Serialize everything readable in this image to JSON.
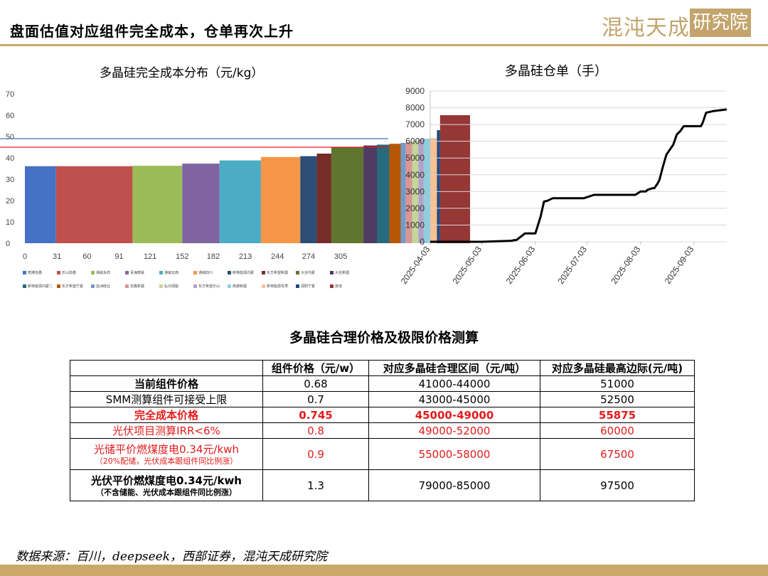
{
  "header": {
    "title": "盘面估值对应组件完全成本，仓单再次上升",
    "logo": "混沌天成研究院",
    "logo_main": "混沌天成",
    "logo_boxed": "研究院"
  },
  "source": "数据来源：百川，deepseek，西部证券，混沌天成研究院",
  "colors": {
    "accent": "#c9a86a",
    "red": "#e31b1b",
    "logo": "#c3a46c"
  },
  "chart_data": [
    {
      "type": "bar",
      "title": "多晶硅完全成本分布（元/kg）",
      "xlabel": "",
      "ylabel": "",
      "xlim": [
        0,
        340
      ],
      "ylim": [
        0,
        70
      ],
      "yticks": [
        0,
        10,
        20,
        30,
        40,
        50,
        60,
        70
      ],
      "xticks": [
        0,
        31,
        60,
        91,
        121,
        152,
        182,
        213,
        244,
        274,
        305
      ],
      "bars": [
        {
          "name": "丽港协鑫",
          "x0": 0,
          "x1": 30,
          "value": 36.1,
          "color": "#4472c4"
        },
        {
          "name": "乐山协鑫",
          "x0": 30,
          "x1": 104,
          "value": 36.1,
          "color": "#c0504d"
        },
        {
          "name": "通威永祥",
          "x0": 104,
          "x1": 152,
          "value": 36.3,
          "color": "#9bbb59"
        },
        {
          "name": "青海丽豪",
          "x0": 152,
          "x1": 188,
          "value": 37.3,
          "color": "#8064a2"
        },
        {
          "name": "通威云南",
          "x0": 188,
          "x1": 228,
          "value": 38.8,
          "color": "#4bacc6"
        },
        {
          "name": "通威四川",
          "x0": 228,
          "x1": 266,
          "value": 40.4,
          "color": "#f79646"
        },
        {
          "name": "新特能源内蒙",
          "x0": 266,
          "x1": 282,
          "value": 40.8,
          "color": "#2c4d75"
        },
        {
          "name": "东方希望新疆",
          "x0": 282,
          "x1": 296,
          "value": 42.0,
          "color": "#772c2a"
        },
        {
          "name": "大全内蒙",
          "x0": 296,
          "x1": 327,
          "value": 45.0,
          "color": "#5f7530"
        },
        {
          "name": "大全新疆",
          "x0": 327,
          "x1": 340,
          "value": 45.8,
          "color": "#4d3b62"
        },
        {
          "name": "新特能源内蒙二",
          "x0": 340,
          "x1": 352,
          "value": 46.2,
          "color": "#276a7c"
        },
        {
          "name": "东方希望宁夏",
          "x0": 352,
          "x1": 363,
          "value": 46.6,
          "color": "#b65708"
        },
        {
          "name": "亚洲硅业",
          "x0": 363,
          "x1": 368,
          "value": 47.0,
          "color": "#729aca"
        },
        {
          "name": "协鑫新疆",
          "x0": 368,
          "x1": 374,
          "value": 47.4,
          "color": "#d99694"
        },
        {
          "name": "弘元绿能",
          "x0": 374,
          "x1": 380,
          "value": 48.0,
          "color": "#c3d69b"
        },
        {
          "name": "东方希望乐山",
          "x0": 380,
          "x1": 385,
          "value": 48.8,
          "color": "#b3a2c7"
        },
        {
          "name": "南玻新疆",
          "x0": 385,
          "x1": 392,
          "value": 49.0,
          "color": "#93cddd"
        },
        {
          "name": "新特能源甘肃",
          "x0": 392,
          "x1": 398,
          "value": 49.2,
          "color": "#fac090"
        },
        {
          "name": "润阳宁夏",
          "x0": 398,
          "x1": 401,
          "value": 53.0,
          "color": "#1f497d"
        },
        {
          "name": "其他",
          "x0": 401,
          "x1": 430,
          "value": 60.0,
          "color": "#953735"
        }
      ],
      "hlines": [
        {
          "value": 49.0,
          "color": "#4472c4"
        },
        {
          "value": 45.0,
          "color": "#e31b1b"
        }
      ],
      "legend_position": "bottom"
    },
    {
      "type": "line",
      "title": "多晶硅仓单（手）",
      "xlabel": "",
      "ylabel": "",
      "xlim": [
        "2025-04-03",
        "2025-09-22"
      ],
      "ylim": [
        0,
        9000
      ],
      "yticks": [
        0,
        1000,
        2000,
        3000,
        4000,
        5000,
        6000,
        7000,
        8000,
        9000
      ],
      "xticks": [
        "2025-04-03",
        "2025-05-03",
        "2025-06-03",
        "2025-07-03",
        "2025-08-03",
        "2025-09-03"
      ],
      "series": [
        {
          "x": [
            "2025-04-03",
            "2025-04-20",
            "2025-05-03",
            "2025-05-12",
            "2025-05-14",
            "2025-05-20",
            "2025-05-22",
            "2025-05-23",
            "2025-05-28",
            "2025-06-01",
            "2025-06-03",
            "2025-06-06",
            "2025-06-08",
            "2025-06-10",
            "2025-06-13",
            "2025-06-15",
            "2025-06-20",
            "2025-07-01",
            "2025-07-07",
            "2025-07-10",
            "2025-07-15",
            "2025-07-25",
            "2025-07-31",
            "2025-08-03",
            "2025-08-06",
            "2025-08-07",
            "2025-08-10",
            "2025-08-11",
            "2025-08-13",
            "2025-08-14",
            "2025-08-16",
            "2025-08-18",
            "2025-08-20",
            "2025-08-22",
            "2025-08-24",
            "2025-08-26",
            "2025-08-28",
            "2025-09-04",
            "2025-09-07",
            "2025-09-08",
            "2025-09-10",
            "2025-09-14",
            "2025-09-22"
          ],
          "y": [
            0,
            0,
            0,
            30,
            40,
            60,
            100,
            100,
            500,
            500,
            500,
            1500,
            2400,
            2450,
            2600,
            2600,
            2600,
            2600,
            2800,
            2800,
            2800,
            2800,
            2800,
            3000,
            3000,
            3100,
            3200,
            3200,
            3500,
            3700,
            4500,
            5200,
            5500,
            5800,
            6400,
            6600,
            6900,
            6900,
            6900,
            7100,
            7700,
            7800,
            7900
          ]
        }
      ]
    },
    {
      "type": "table",
      "title": "多晶硅合理价格及极限价格测算",
      "columns": [
        "",
        "组件价格（元/w）",
        "对应多晶硅合理区间（元/吨）",
        "对应多晶硅最高边际(元/吨)"
      ],
      "rows": [
        {
          "label": "当前组件价格",
          "sub": "",
          "price": "0.68",
          "range": "41000-44000",
          "max": "51000",
          "style": "bold"
        },
        {
          "label": "SMM测算组件可接受上限",
          "sub": "",
          "price": "0.7",
          "range": "43000-45000",
          "max": "52500",
          "style": "normal"
        },
        {
          "label": "完全成本价格",
          "sub": "",
          "price": "0.745",
          "range": "45000-49000",
          "max": "55875",
          "style": "red-bold"
        },
        {
          "label": "光伏项目测算IRR<6%",
          "sub": "",
          "price": "0.8",
          "range": "49000-52000",
          "max": "60000",
          "style": "red"
        },
        {
          "label": "光储平价燃煤度电0.34元/kwh",
          "sub": "（20%配储，光伏成本跟组件同比例涨）",
          "price": "0.9",
          "range": "55000-58000",
          "max": "67500",
          "style": "red"
        },
        {
          "label": "光伏平价燃煤度电0.34元/kwh",
          "sub": "（不含储能、光伏成本跟组件同比例涨）",
          "price": "1.3",
          "range": "79000-85000",
          "max": "97500",
          "style": "bold"
        }
      ]
    }
  ]
}
